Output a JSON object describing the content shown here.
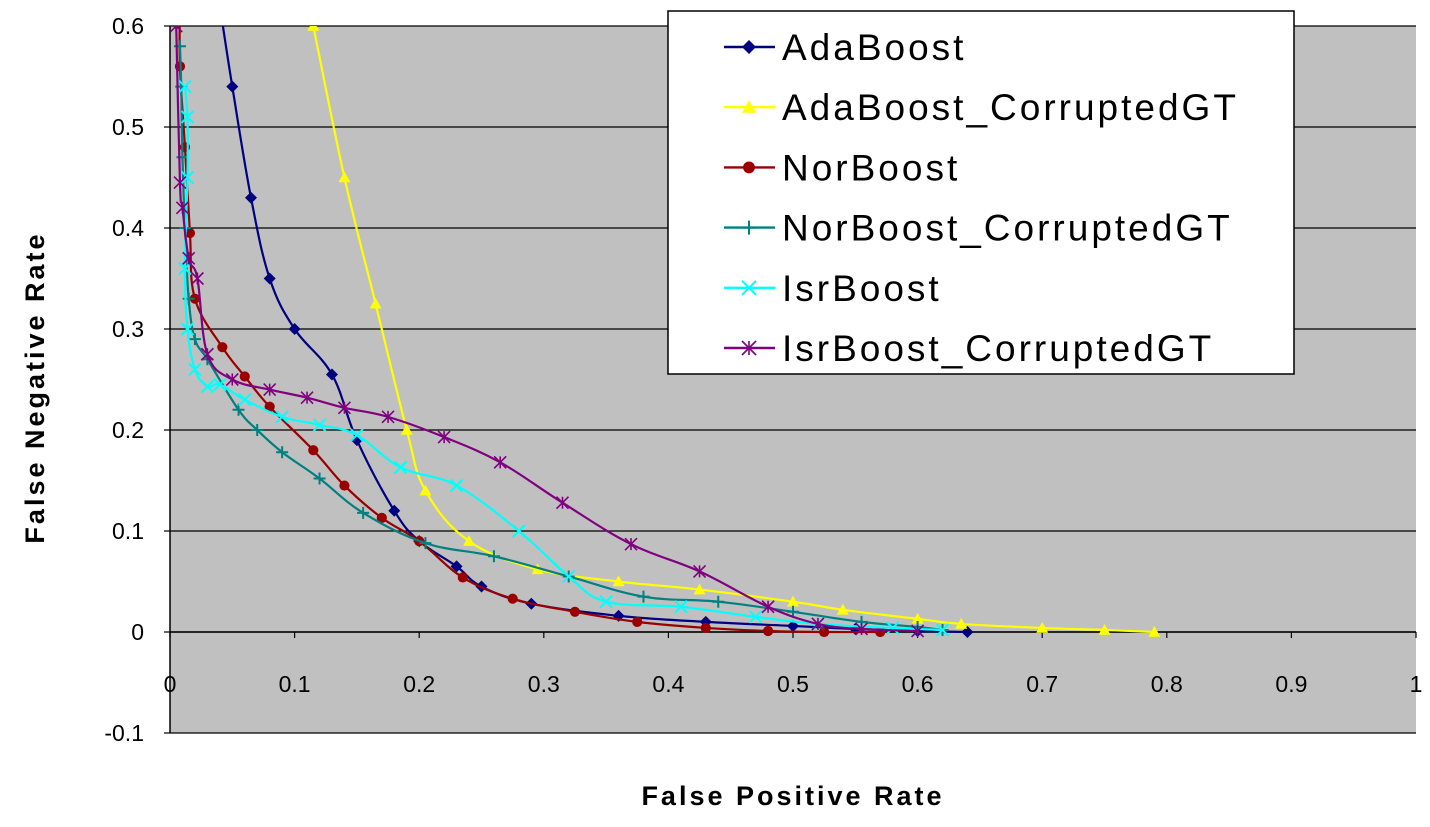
{
  "chart_data": {
    "type": "line",
    "title": "",
    "xlabel": "False Positive Rate",
    "ylabel": "False Negative Rate",
    "xlim": [
      0,
      1
    ],
    "ylim": [
      -0.1,
      0.6
    ],
    "x_ticks": [
      "0",
      "0.1",
      "0.2",
      "0.3",
      "0.4",
      "0.5",
      "0.6",
      "0.7",
      "0.8",
      "0.9",
      "1"
    ],
    "y_ticks": [
      "-0.1",
      "0",
      "0.1",
      "0.2",
      "0.3",
      "0.4",
      "0.5",
      "0.6"
    ],
    "grid": "horizontal",
    "legend_position": "top-right",
    "plot_background": "#c0c0c0",
    "series": [
      {
        "name": "AdaBoost",
        "color": "#000080",
        "marker": "diamond",
        "points": [
          [
            0.04,
            0.62
          ],
          [
            0.05,
            0.54
          ],
          [
            0.065,
            0.43
          ],
          [
            0.08,
            0.35
          ],
          [
            0.1,
            0.3
          ],
          [
            0.13,
            0.255
          ],
          [
            0.15,
            0.19
          ],
          [
            0.18,
            0.12
          ],
          [
            0.2,
            0.09
          ],
          [
            0.23,
            0.065
          ],
          [
            0.25,
            0.045
          ],
          [
            0.29,
            0.028
          ],
          [
            0.36,
            0.016
          ],
          [
            0.43,
            0.01
          ],
          [
            0.5,
            0.006
          ],
          [
            0.55,
            0.003
          ],
          [
            0.6,
            0.001
          ],
          [
            0.64,
            0.0
          ]
        ]
      },
      {
        "name": "AdaBoost_CorruptedGT",
        "color": "#ffff00",
        "marker": "triangle",
        "points": [
          [
            0.115,
            0.6
          ],
          [
            0.14,
            0.45
          ],
          [
            0.165,
            0.325
          ],
          [
            0.19,
            0.2
          ],
          [
            0.205,
            0.14
          ],
          [
            0.24,
            0.09
          ],
          [
            0.295,
            0.062
          ],
          [
            0.36,
            0.05
          ],
          [
            0.425,
            0.042
          ],
          [
            0.5,
            0.03
          ],
          [
            0.54,
            0.022
          ],
          [
            0.6,
            0.013
          ],
          [
            0.635,
            0.008
          ],
          [
            0.7,
            0.004
          ],
          [
            0.75,
            0.002
          ],
          [
            0.79,
            0.0
          ]
        ]
      },
      {
        "name": "NorBoost",
        "color": "#990000",
        "marker": "circle",
        "points": [
          [
            0.008,
            0.62
          ],
          [
            0.008,
            0.56
          ],
          [
            0.012,
            0.48
          ],
          [
            0.016,
            0.395
          ],
          [
            0.02,
            0.33
          ],
          [
            0.042,
            0.282
          ],
          [
            0.06,
            0.253
          ],
          [
            0.08,
            0.223
          ],
          [
            0.115,
            0.18
          ],
          [
            0.14,
            0.145
          ],
          [
            0.17,
            0.113
          ],
          [
            0.2,
            0.09
          ],
          [
            0.235,
            0.054
          ],
          [
            0.275,
            0.033
          ],
          [
            0.325,
            0.02
          ],
          [
            0.375,
            0.01
          ],
          [
            0.43,
            0.004
          ],
          [
            0.48,
            0.001
          ],
          [
            0.525,
            0.0
          ],
          [
            0.57,
            0.0
          ]
        ]
      },
      {
        "name": "NorBoost_CorruptedGT",
        "color": "#008080",
        "marker": "plus",
        "points": [
          [
            0.008,
            0.58
          ],
          [
            0.009,
            0.54
          ],
          [
            0.01,
            0.47
          ],
          [
            0.012,
            0.4
          ],
          [
            0.015,
            0.33
          ],
          [
            0.02,
            0.29
          ],
          [
            0.03,
            0.27
          ],
          [
            0.055,
            0.22
          ],
          [
            0.07,
            0.2
          ],
          [
            0.09,
            0.178
          ],
          [
            0.12,
            0.152
          ],
          [
            0.155,
            0.118
          ],
          [
            0.205,
            0.088
          ],
          [
            0.26,
            0.075
          ],
          [
            0.32,
            0.055
          ],
          [
            0.38,
            0.035
          ],
          [
            0.44,
            0.03
          ],
          [
            0.5,
            0.02
          ],
          [
            0.555,
            0.01
          ],
          [
            0.6,
            0.005
          ],
          [
            0.62,
            0.002
          ]
        ]
      },
      {
        "name": "IsrBoost",
        "color": "#00ffff",
        "marker": "x",
        "points": [
          [
            0.012,
            0.54
          ],
          [
            0.014,
            0.51
          ],
          [
            0.014,
            0.45
          ],
          [
            0.012,
            0.36
          ],
          [
            0.014,
            0.3
          ],
          [
            0.02,
            0.26
          ],
          [
            0.03,
            0.243
          ],
          [
            0.04,
            0.245
          ],
          [
            0.06,
            0.23
          ],
          [
            0.09,
            0.213
          ],
          [
            0.12,
            0.205
          ],
          [
            0.15,
            0.195
          ],
          [
            0.185,
            0.163
          ],
          [
            0.23,
            0.145
          ],
          [
            0.28,
            0.1
          ],
          [
            0.32,
            0.055
          ],
          [
            0.35,
            0.03
          ],
          [
            0.41,
            0.025
          ],
          [
            0.47,
            0.015
          ],
          [
            0.52,
            0.008
          ],
          [
            0.58,
            0.004
          ],
          [
            0.62,
            0.002
          ]
        ]
      },
      {
        "name": "IsrBoost_CorruptedGT",
        "color": "#800080",
        "marker": "asterisk",
        "points": [
          [
            0.005,
            0.6
          ],
          [
            0.008,
            0.445
          ],
          [
            0.01,
            0.42
          ],
          [
            0.015,
            0.37
          ],
          [
            0.022,
            0.35
          ],
          [
            0.03,
            0.275
          ],
          [
            0.05,
            0.25
          ],
          [
            0.08,
            0.24
          ],
          [
            0.11,
            0.232
          ],
          [
            0.14,
            0.222
          ],
          [
            0.175,
            0.213
          ],
          [
            0.22,
            0.193
          ],
          [
            0.265,
            0.168
          ],
          [
            0.315,
            0.128
          ],
          [
            0.37,
            0.087
          ],
          [
            0.425,
            0.06
          ],
          [
            0.48,
            0.025
          ],
          [
            0.52,
            0.008
          ],
          [
            0.555,
            0.003
          ],
          [
            0.6,
            0.001
          ]
        ]
      }
    ]
  }
}
